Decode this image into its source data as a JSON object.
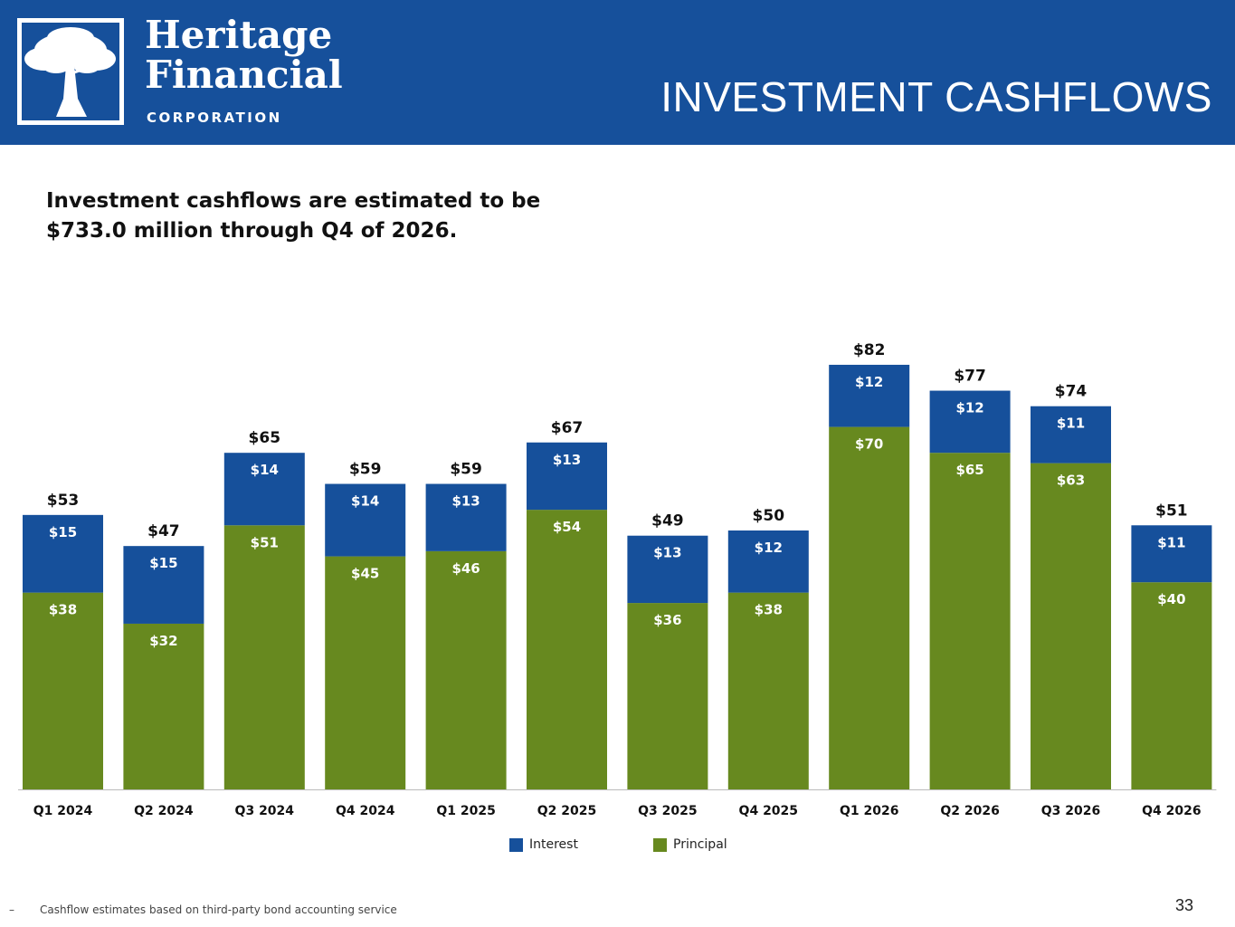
{
  "header": {
    "logo_name_line1": "Heritage",
    "logo_name_line2": "Financial",
    "logo_sub": "CORPORATION",
    "title": "INVESTMENT CASHFLOWS"
  },
  "headline": "Investment cashflows are estimated to be $733.0 million through Q4 of 2026.",
  "chart_data": {
    "type": "bar",
    "stacked": true,
    "categories": [
      "Q1 2024",
      "Q2 2024",
      "Q3 2024",
      "Q4 2024",
      "Q1 2025",
      "Q2 2025",
      "Q3 2025",
      "Q4 2025",
      "Q1 2026",
      "Q2 2026",
      "Q3 2026",
      "Q4 2026"
    ],
    "series": [
      {
        "name": "Principal",
        "color": "#67891f",
        "values": [
          38,
          32,
          51,
          45,
          46,
          54,
          36,
          38,
          70,
          65,
          63,
          40
        ]
      },
      {
        "name": "Interest",
        "color": "#16509b",
        "values": [
          15,
          15,
          14,
          14,
          13,
          13,
          13,
          12,
          12,
          12,
          11,
          11
        ]
      }
    ],
    "totals": [
      53,
      47,
      65,
      59,
      59,
      67,
      49,
      50,
      82,
      77,
      74,
      51
    ],
    "value_prefix": "$",
    "ylim": [
      0,
      85
    ],
    "legend": [
      "Interest",
      "Principal"
    ],
    "legend_position": "bottom"
  },
  "legend": {
    "interest": "Interest",
    "principal": "Principal"
  },
  "colors": {
    "brand_blue": "#16509b",
    "principal_green": "#67891f"
  },
  "footnote": "Cashflow estimates based on third-party bond accounting service",
  "footnote_bullet": "–",
  "page_number": "33"
}
